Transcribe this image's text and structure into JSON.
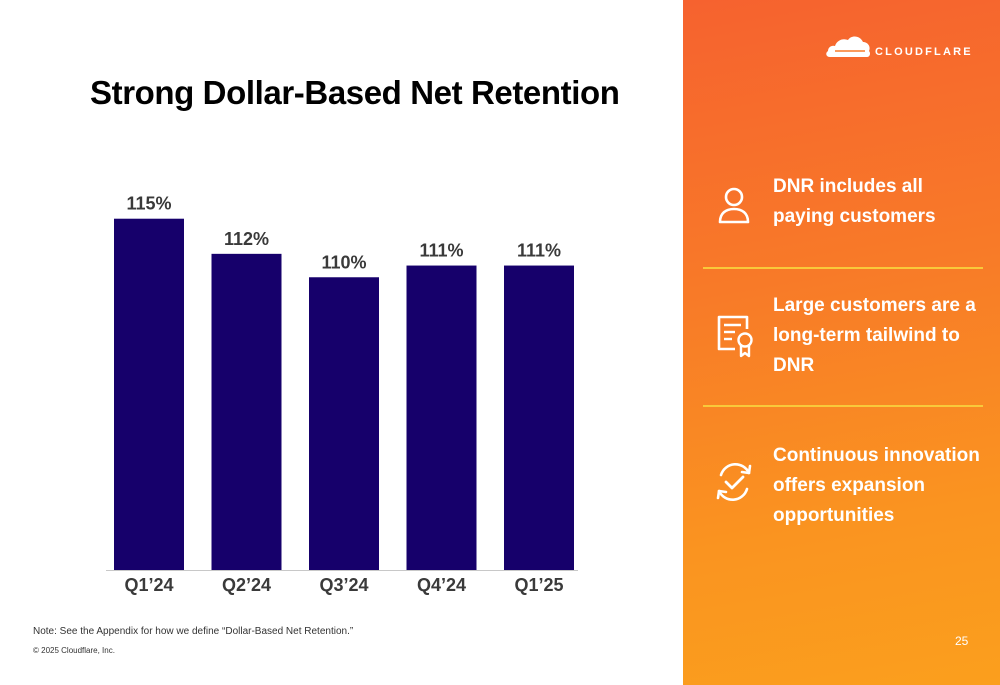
{
  "title": "Strong Dollar-Based Net Retention",
  "chart_data": {
    "type": "bar",
    "categories": [
      "Q1’24",
      "Q2’24",
      "Q3’24",
      "Q4’24",
      "Q1’25"
    ],
    "values": [
      115,
      112,
      110,
      111,
      111
    ],
    "value_labels": [
      "115%",
      "112%",
      "110%",
      "111%",
      "111%"
    ],
    "unit": "%",
    "bar_color": "#16006b",
    "ylim": [
      85,
      116
    ],
    "grid": false,
    "legend": "none"
  },
  "note": "Note: See the Appendix for how we define “Dollar-Based Net Retention.”",
  "copyright": "© 2025 Cloudflare, Inc.",
  "sidebar": {
    "logo_text": "CLOUDFLARE",
    "features": [
      {
        "icon": "person-icon",
        "text": "DNR includes all paying customers"
      },
      {
        "icon": "certificate-icon",
        "text": "Large customers are a long-term tailwind to DNR"
      },
      {
        "icon": "refresh-check-icon",
        "text": "Continuous innovation offers expansion opportunities"
      }
    ],
    "page_number": "25"
  },
  "colors": {
    "panel_start": "#f6622f",
    "panel_end": "#fb9f1d",
    "divider": "#f9c93a",
    "bar": "#16006b"
  }
}
